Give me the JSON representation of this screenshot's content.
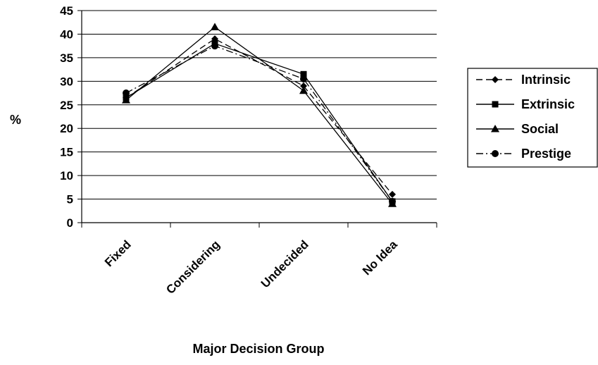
{
  "chart_data": {
    "type": "line",
    "title": "",
    "xlabel": "Major Decision Group",
    "ylabel": "%",
    "categories": [
      "Fixed",
      "Considering",
      "Undecided",
      "No Idea"
    ],
    "ylim": [
      0,
      45
    ],
    "yticks": [
      0,
      5,
      10,
      15,
      20,
      25,
      30,
      35,
      40,
      45
    ],
    "grid": "horizontal",
    "legend_position": "right",
    "series": [
      {
        "name": "Intrinsic",
        "values": [
          26.5,
          39,
          29,
          6
        ],
        "marker": "diamond",
        "dash": "dashed"
      },
      {
        "name": "Extrinsic",
        "values": [
          26.5,
          38,
          31.5,
          4.5
        ],
        "marker": "square",
        "dash": "solid"
      },
      {
        "name": "Social",
        "values": [
          26,
          41.5,
          28,
          4
        ],
        "marker": "triangle",
        "dash": "solid"
      },
      {
        "name": "Prestige",
        "values": [
          27.5,
          37.5,
          30.5,
          4.5
        ],
        "marker": "circle",
        "dash": "dashdot"
      }
    ]
  }
}
